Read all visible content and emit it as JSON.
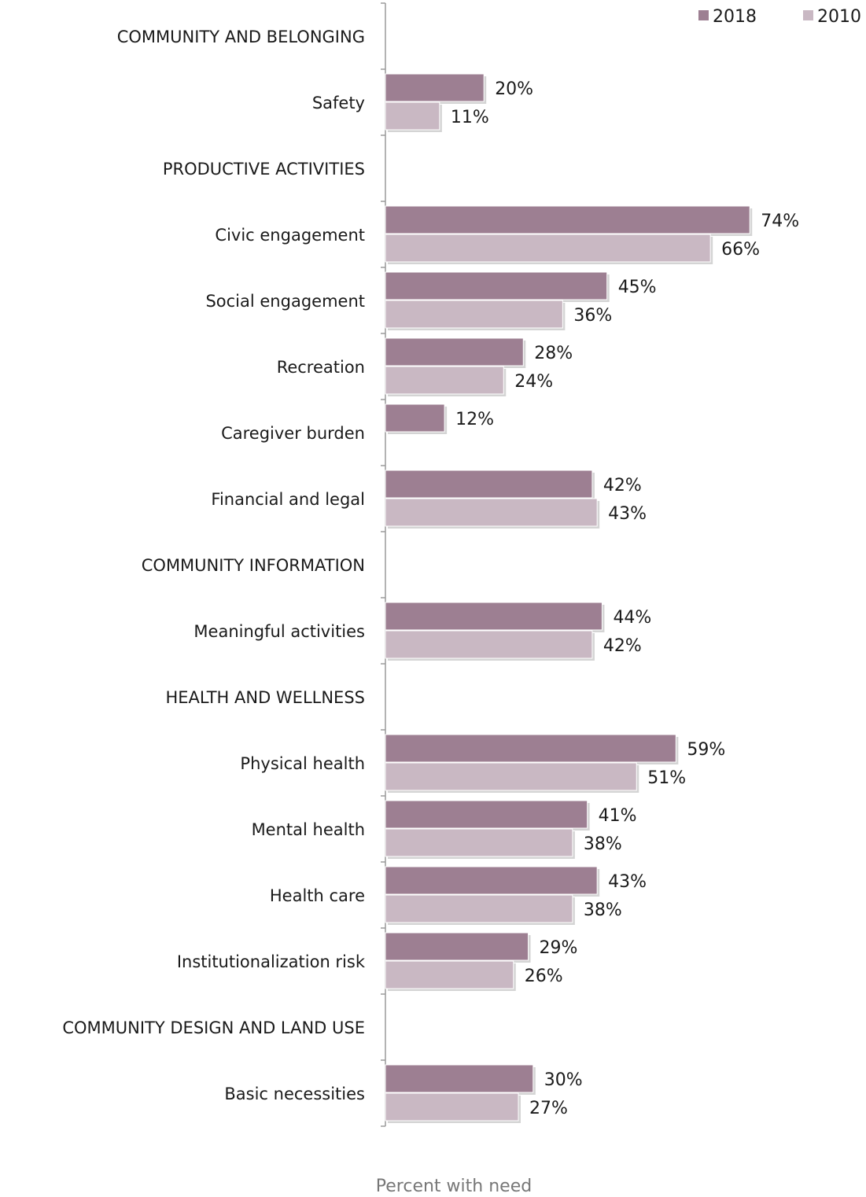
{
  "chart_data": {
    "type": "bar",
    "orientation": "horizontal",
    "xlabel": "Percent with need",
    "ylabel": "",
    "xlim": [
      0,
      80
    ],
    "grid": false,
    "legend_position": "top-right",
    "colors": {
      "2018": "#9d7f92",
      "2010": "#c9b8c3"
    },
    "series": [
      {
        "name": "2018",
        "color": "#9d7f92"
      },
      {
        "name": "2010",
        "color": "#c9b8c3"
      }
    ],
    "categories": [
      {
        "label": "COMMUNITY AND BELONGING",
        "header": true
      },
      {
        "label": "Safety",
        "values": [
          20,
          11
        ],
        "labels": [
          "20%",
          "11%"
        ]
      },
      {
        "label": "PRODUCTIVE ACTIVITIES",
        "header": true
      },
      {
        "label": "Civic engagement",
        "values": [
          74,
          66
        ],
        "labels": [
          "74%",
          "66%"
        ]
      },
      {
        "label": "Social engagement",
        "values": [
          45,
          36
        ],
        "labels": [
          "45%",
          "36%"
        ]
      },
      {
        "label": "Recreation",
        "values": [
          28,
          24
        ],
        "labels": [
          "28%",
          "24%"
        ]
      },
      {
        "label": "Caregiver burden",
        "values": [
          12,
          null
        ],
        "labels": [
          "12%",
          null
        ]
      },
      {
        "label": "Financial and legal",
        "values": [
          42,
          43
        ],
        "labels": [
          "42%",
          "43%"
        ]
      },
      {
        "label": "COMMUNITY INFORMATION",
        "header": true
      },
      {
        "label": "Meaningful activities",
        "values": [
          44,
          42
        ],
        "labels": [
          "44%",
          "42%"
        ]
      },
      {
        "label": "HEALTH AND WELLNESS",
        "header": true
      },
      {
        "label": "Physical health",
        "values": [
          59,
          51
        ],
        "labels": [
          "59%",
          "51%"
        ]
      },
      {
        "label": "Mental health",
        "values": [
          41,
          38
        ],
        "labels": [
          "41%",
          "38%"
        ]
      },
      {
        "label": "Health care",
        "values": [
          43,
          38
        ],
        "labels": [
          "43%",
          "38%"
        ]
      },
      {
        "label": "Institutionalization risk",
        "values": [
          29,
          26
        ],
        "labels": [
          "29%",
          "26%"
        ]
      },
      {
        "label": "COMMUNITY DESIGN AND LAND USE",
        "header": true
      },
      {
        "label": "Basic necessities",
        "values": [
          30,
          27
        ],
        "labels": [
          "30%",
          "27%"
        ]
      }
    ]
  }
}
